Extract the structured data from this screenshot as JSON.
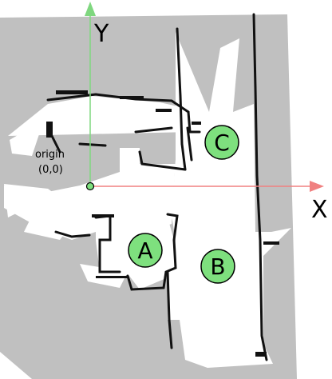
{
  "axes": {
    "x_label": "X",
    "y_label": "Y",
    "x_color": "#f08080",
    "y_color": "#7fd77f"
  },
  "origin": {
    "name": "origin",
    "coords": "(0,0)"
  },
  "waypoints": [
    {
      "id": "C",
      "label": "C"
    },
    {
      "id": "A",
      "label": "A"
    },
    {
      "id": "B",
      "label": "B"
    }
  ],
  "colors": {
    "unknown": "#c0c0c0",
    "free": "#ffffff",
    "obstacle": "#111111",
    "waypoint_fill": "#7ee07e",
    "waypoint_stroke": "#000000"
  }
}
